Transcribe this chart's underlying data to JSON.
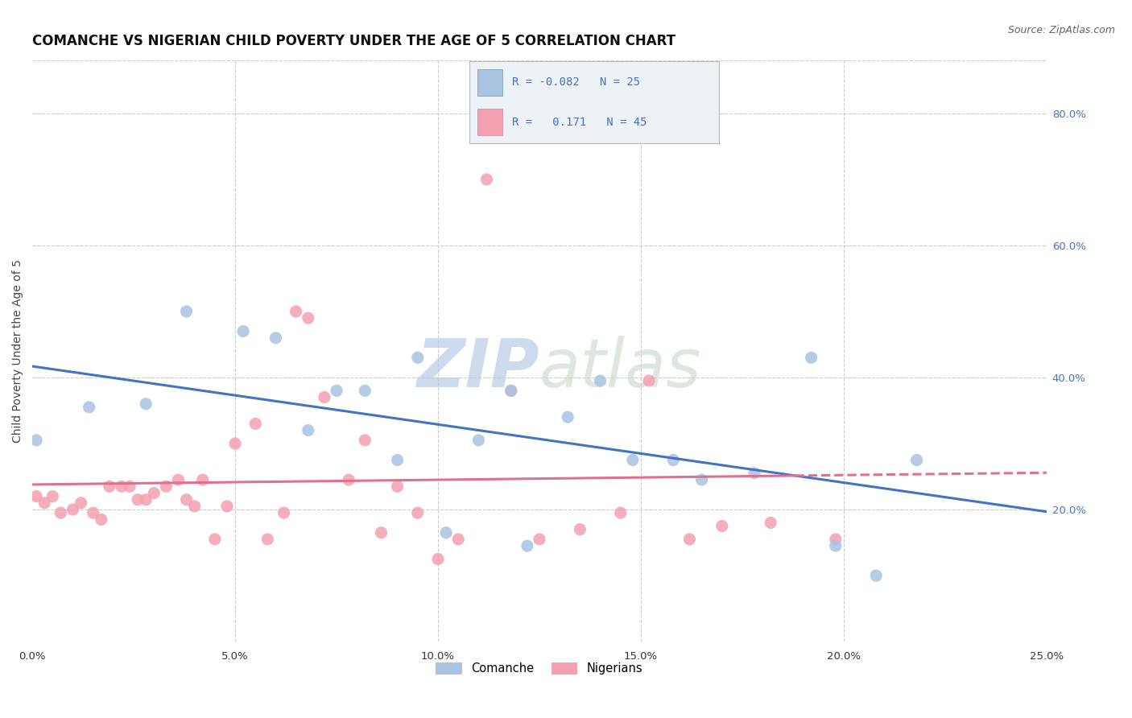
{
  "title": "COMANCHE VS NIGERIAN CHILD POVERTY UNDER THE AGE OF 5 CORRELATION CHART",
  "source": "Source: ZipAtlas.com",
  "ylabel": "Child Poverty Under the Age of 5",
  "xlim": [
    0.0,
    0.25
  ],
  "ylim": [
    0.0,
    0.88
  ],
  "xticks": [
    0.0,
    0.05,
    0.1,
    0.15,
    0.2,
    0.25
  ],
  "yticks_right": [
    0.2,
    0.4,
    0.6,
    0.8
  ],
  "comanche_R": -0.082,
  "comanche_N": 25,
  "nigerian_R": 0.171,
  "nigerian_N": 45,
  "comanche_color": "#a8c4e0",
  "nigerian_color": "#f4a0b0",
  "comanche_line_color": "#4472c4",
  "nigerian_line_color": "#e07090",
  "background_color": "#ffffff",
  "grid_color": "#cccccc",
  "watermark_text": "ZIPatlas",
  "comanche_x": [
    0.001,
    0.014,
    0.028,
    0.038,
    0.052,
    0.06,
    0.068,
    0.075,
    0.082,
    0.09,
    0.095,
    0.102,
    0.11,
    0.118,
    0.122,
    0.132,
    0.14,
    0.148,
    0.158,
    0.165,
    0.178,
    0.192,
    0.198,
    0.208,
    0.218
  ],
  "comanche_y": [
    0.305,
    0.355,
    0.36,
    0.5,
    0.47,
    0.46,
    0.32,
    0.38,
    0.38,
    0.275,
    0.43,
    0.165,
    0.305,
    0.38,
    0.145,
    0.34,
    0.395,
    0.275,
    0.275,
    0.245,
    0.255,
    0.43,
    0.145,
    0.1,
    0.275
  ],
  "nigerian_x": [
    0.001,
    0.003,
    0.005,
    0.007,
    0.01,
    0.012,
    0.015,
    0.017,
    0.019,
    0.022,
    0.024,
    0.026,
    0.028,
    0.03,
    0.033,
    0.036,
    0.038,
    0.04,
    0.042,
    0.045,
    0.048,
    0.05,
    0.055,
    0.058,
    0.062,
    0.065,
    0.068,
    0.072,
    0.078,
    0.082,
    0.086,
    0.09,
    0.095,
    0.1,
    0.105,
    0.112,
    0.118,
    0.125,
    0.135,
    0.145,
    0.152,
    0.162,
    0.17,
    0.182,
    0.198
  ],
  "nigerian_y": [
    0.22,
    0.21,
    0.22,
    0.195,
    0.2,
    0.21,
    0.195,
    0.185,
    0.235,
    0.235,
    0.235,
    0.215,
    0.215,
    0.225,
    0.235,
    0.245,
    0.215,
    0.205,
    0.245,
    0.155,
    0.205,
    0.3,
    0.33,
    0.155,
    0.195,
    0.5,
    0.49,
    0.37,
    0.245,
    0.305,
    0.165,
    0.235,
    0.195,
    0.125,
    0.155,
    0.7,
    0.38,
    0.155,
    0.17,
    0.195,
    0.395,
    0.155,
    0.175,
    0.18,
    0.155
  ],
  "legend_R1_text": "R = -0.082",
  "legend_N1_text": "N = 25",
  "legend_R2_text": "R =   0.171",
  "legend_N2_text": "N = 45"
}
